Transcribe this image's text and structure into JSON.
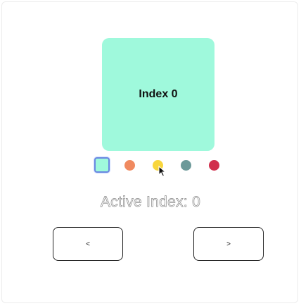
{
  "card": {
    "label": "Index 0",
    "color": "#9ff9dc"
  },
  "dots": [
    {
      "color": "#9ff9dc",
      "active": true
    },
    {
      "color": "#f08a60",
      "active": false
    },
    {
      "color": "#f8d63d",
      "active": false
    },
    {
      "color": "#6c9999",
      "active": false
    },
    {
      "color": "#d12f4c",
      "active": false
    }
  ],
  "status": {
    "active_index_text": "Active Index: 0"
  },
  "controls": {
    "prev_label": "<",
    "next_label": ">"
  }
}
